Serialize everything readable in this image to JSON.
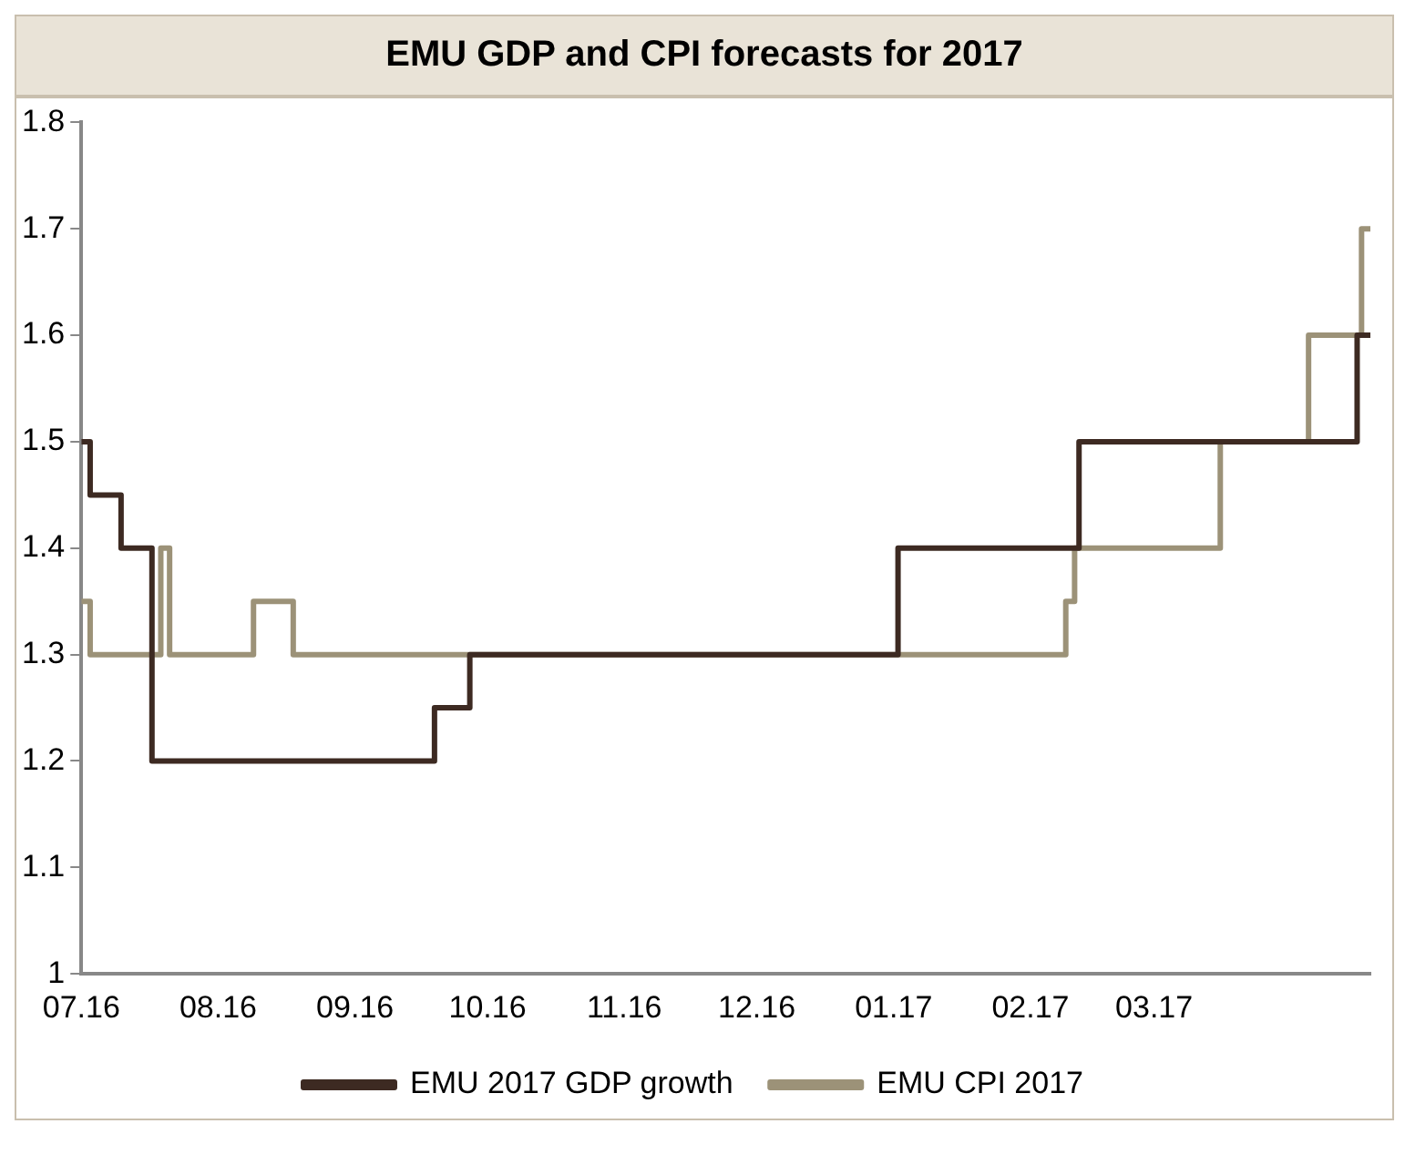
{
  "chart_data": {
    "type": "step",
    "title": "EMU GDP and CPI forecasts for 2017",
    "xlim": [
      "2016-07-01",
      "2017-04-19"
    ],
    "xticks": [
      {
        "value": "2016-07-01",
        "label": "07.16"
      },
      {
        "value": "2016-08-01",
        "label": "08.16"
      },
      {
        "value": "2016-09-01",
        "label": "09.16"
      },
      {
        "value": "2016-10-01",
        "label": "10.16"
      },
      {
        "value": "2016-11-01",
        "label": "11.16"
      },
      {
        "value": "2016-12-01",
        "label": "12.16"
      },
      {
        "value": "2017-01-01",
        "label": "01.17"
      },
      {
        "value": "2017-02-01",
        "label": "02.17"
      },
      {
        "value": "2017-03-01",
        "label": "03.17"
      }
    ],
    "ylim": [
      1,
      1.8
    ],
    "yticks": [
      1,
      1.1,
      1.2,
      1.3,
      1.4,
      1.5,
      1.6,
      1.7,
      1.8
    ],
    "grid": false,
    "legend": "bottom",
    "series": [
      {
        "name": "EMU 2017 GDP growth",
        "color": "#3d2a22",
        "x": [
          "2016-07-01",
          "2016-07-03",
          "2016-07-10",
          "2016-07-17",
          "2016-09-19",
          "2016-09-27",
          "2017-01-02",
          "2017-02-12",
          "2017-04-16",
          "2017-04-19"
        ],
        "values": [
          1.5,
          1.45,
          1.4,
          1.2,
          1.25,
          1.3,
          1.4,
          1.5,
          1.6,
          1.6
        ]
      },
      {
        "name": "EMU CPI 2017",
        "color": "#9c9278",
        "x": [
          "2016-07-01",
          "2016-07-03",
          "2016-07-19",
          "2016-07-21",
          "2016-08-09",
          "2016-08-18",
          "2017-02-09",
          "2017-02-11",
          "2017-03-16",
          "2017-04-05",
          "2017-04-17",
          "2017-04-19"
        ],
        "values": [
          1.35,
          1.3,
          1.4,
          1.3,
          1.35,
          1.3,
          1.35,
          1.4,
          1.5,
          1.6,
          1.7,
          1.7
        ]
      }
    ]
  }
}
